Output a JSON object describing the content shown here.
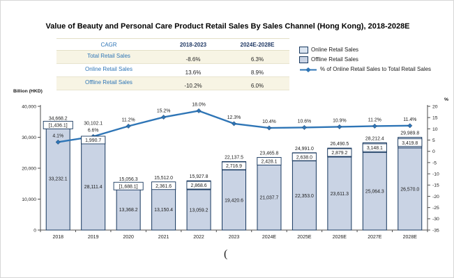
{
  "cagr_table": {
    "header": [
      "CAGR",
      "2018-2023",
      "2024E-2028E"
    ],
    "rows": [
      {
        "label": "Total Retail Sales",
        "values": [
          "-8.6%",
          "6.3%"
        ]
      },
      {
        "label": "Online Retail Sales",
        "values": [
          "13.6%",
          "8.9%"
        ]
      },
      {
        "label": "Offline Retail Sales",
        "values": [
          "-10.2%",
          "6.0%"
        ]
      }
    ]
  },
  "legend": {
    "items": [
      {
        "label": "Online Retail Sales",
        "swatch": "box",
        "color": "#dbe5f1",
        "icon": "online-swatch-icon"
      },
      {
        "label": "Offline Retail Sales",
        "swatch": "box",
        "color": "#c9d3e4",
        "icon": "offline-swatch-icon"
      },
      {
        "label": "% of Online Retail Sales to Total Retail Sales",
        "swatch": "line",
        "color": "#2e75b6",
        "icon": "pct-line-icon"
      }
    ]
  },
  "chart_data": {
    "type": "bar",
    "subtype": "stacked-bar-with-line",
    "title": "Value of Beauty and Personal Care Product Retail Sales By Sales Channel (Hong Kong), 2018-2028E",
    "categories": [
      "2018",
      "2019",
      "2020",
      "2021",
      "2022",
      "2023",
      "2024E",
      "2025E",
      "2026E",
      "2027E",
      "2028E"
    ],
    "bar_border": "#17375e",
    "grid": false,
    "legend_position": "top-right",
    "series": [
      {
        "name": "Offline Retail Sales",
        "type": "bar",
        "axis": "left",
        "color": "#c9d3e4",
        "values": [
          33232.1,
          28111.4,
          13368.2,
          13150.4,
          13059.2,
          19420.6,
          21037.7,
          22353.0,
          23611.3,
          25064.3,
          26570.0
        ],
        "labels": [
          "33,232.1",
          "28,111.4",
          "13,368.2",
          "13,150.4",
          "13,059.2",
          "19,420.6",
          "21,037.7",
          "22,353.0",
          "23,611.3",
          "25,064.3",
          "26,570.0"
        ]
      },
      {
        "name": "Online Retail Sales",
        "type": "bar",
        "axis": "left",
        "color": "#dbe5f1",
        "values": [
          1436.1,
          1990.7,
          1688.1,
          2361.6,
          2868.6,
          2716.9,
          2428.1,
          2638.0,
          2879.2,
          3148.1,
          3419.8
        ],
        "labels": [
          "[1,436.1]",
          "1,990.7",
          "[1,688.1]",
          "2,361.6",
          "2,868.6",
          "2,716.9",
          "2,428.1",
          "2,638.0",
          "2,879.2",
          "3,148.1",
          "3,419.8"
        ]
      },
      {
        "name": "% of Online Retail Sales to Total Retail Sales",
        "type": "line",
        "axis": "right",
        "color": "#2e75b6",
        "values": [
          4.1,
          6.6,
          11.2,
          15.2,
          18.0,
          12.3,
          10.4,
          10.6,
          10.9,
          11.2,
          11.4
        ],
        "labels": [
          "4.1%",
          "6.6%",
          "11.2%",
          "15.2%",
          "18.0%",
          "12.3%",
          "10.4%",
          "10.6%",
          "10.9%",
          "11.2%",
          "11.4%"
        ]
      }
    ],
    "totals": [
      34668.2,
      30102.1,
      15056.3,
      15512.0,
      15927.8,
      22137.5,
      23465.8,
      24991.0,
      26490.5,
      28212.4,
      29989.8
    ],
    "total_labels": [
      "34,668.2",
      "30,102.1",
      "15,056.3",
      "15,512.0",
      "15,927.8",
      "22,137.5",
      "23,465.8",
      "24,991.0",
      "26,490.5",
      "28,212.4",
      "29,989.8"
    ],
    "left_axis": {
      "title": "Billion (HKD)",
      "min": 0,
      "max": 40000,
      "tick_values": [
        40000,
        30000,
        20000,
        10000,
        0
      ],
      "ticks": [
        "40,000",
        "30,000",
        "20,000",
        "10,000",
        "0"
      ]
    },
    "right_axis": {
      "title": "%",
      "min": -35,
      "max": 20,
      "tick_values": [
        20,
        15,
        10,
        5,
        0,
        -5,
        -10,
        -15,
        -20,
        -25,
        -30,
        -35
      ],
      "ticks": [
        "20",
        "15",
        "10",
        "5",
        "0",
        "-5",
        "-10",
        "-15",
        "-20",
        "-25",
        "-30",
        "-35"
      ]
    }
  },
  "footer": {
    "mark": "("
  },
  "colors": {
    "online_fill": "#dbe5f1",
    "offline_fill": "#c9d3e4",
    "bar_border": "#17375e",
    "line": "#2e75b6",
    "table_label_blue": "#2e75b6",
    "table_header_navy": "#1f3864",
    "table_row_cream": "#f7f4e4"
  }
}
